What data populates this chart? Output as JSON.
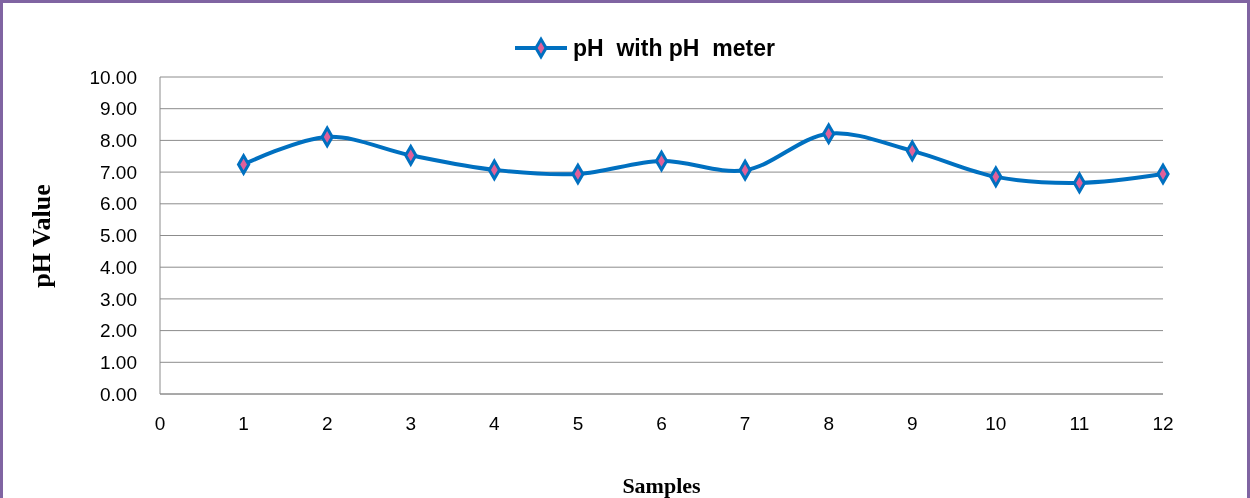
{
  "chart_data": {
    "type": "line",
    "xlabel": "Samples",
    "ylabel": "pH Value",
    "x": [
      1,
      2,
      3,
      4,
      5,
      6,
      7,
      8,
      9,
      10,
      11,
      12
    ],
    "series": [
      {
        "name": "pH  with pH  meter",
        "color": "#0070c0",
        "values": [
          7.24,
          8.11,
          7.53,
          7.07,
          6.94,
          7.35,
          7.06,
          8.21,
          7.67,
          6.85,
          6.66,
          6.94
        ]
      }
    ],
    "xlim": [
      0,
      12
    ],
    "xticks": [
      0,
      1,
      2,
      3,
      4,
      5,
      6,
      7,
      8,
      9,
      10,
      11,
      12
    ],
    "ylim": [
      0,
      10
    ],
    "yticks": [
      {
        "value": 0,
        "label": "0.00"
      },
      {
        "value": 1,
        "label": "1.00"
      },
      {
        "value": 2,
        "label": "2.00"
      },
      {
        "value": 3,
        "label": "3.00"
      },
      {
        "value": 4,
        "label": "4.00"
      },
      {
        "value": 5,
        "label": "5.00"
      },
      {
        "value": 6,
        "label": "6.00"
      },
      {
        "value": 7,
        "label": "7.00"
      },
      {
        "value": 8,
        "label": "8.00"
      },
      {
        "value": 9,
        "label": "9.00"
      },
      {
        "value": 10,
        "label": "10.00"
      }
    ],
    "grid": "y",
    "legend": "top",
    "marker": "diamond",
    "line_style": "solid"
  }
}
